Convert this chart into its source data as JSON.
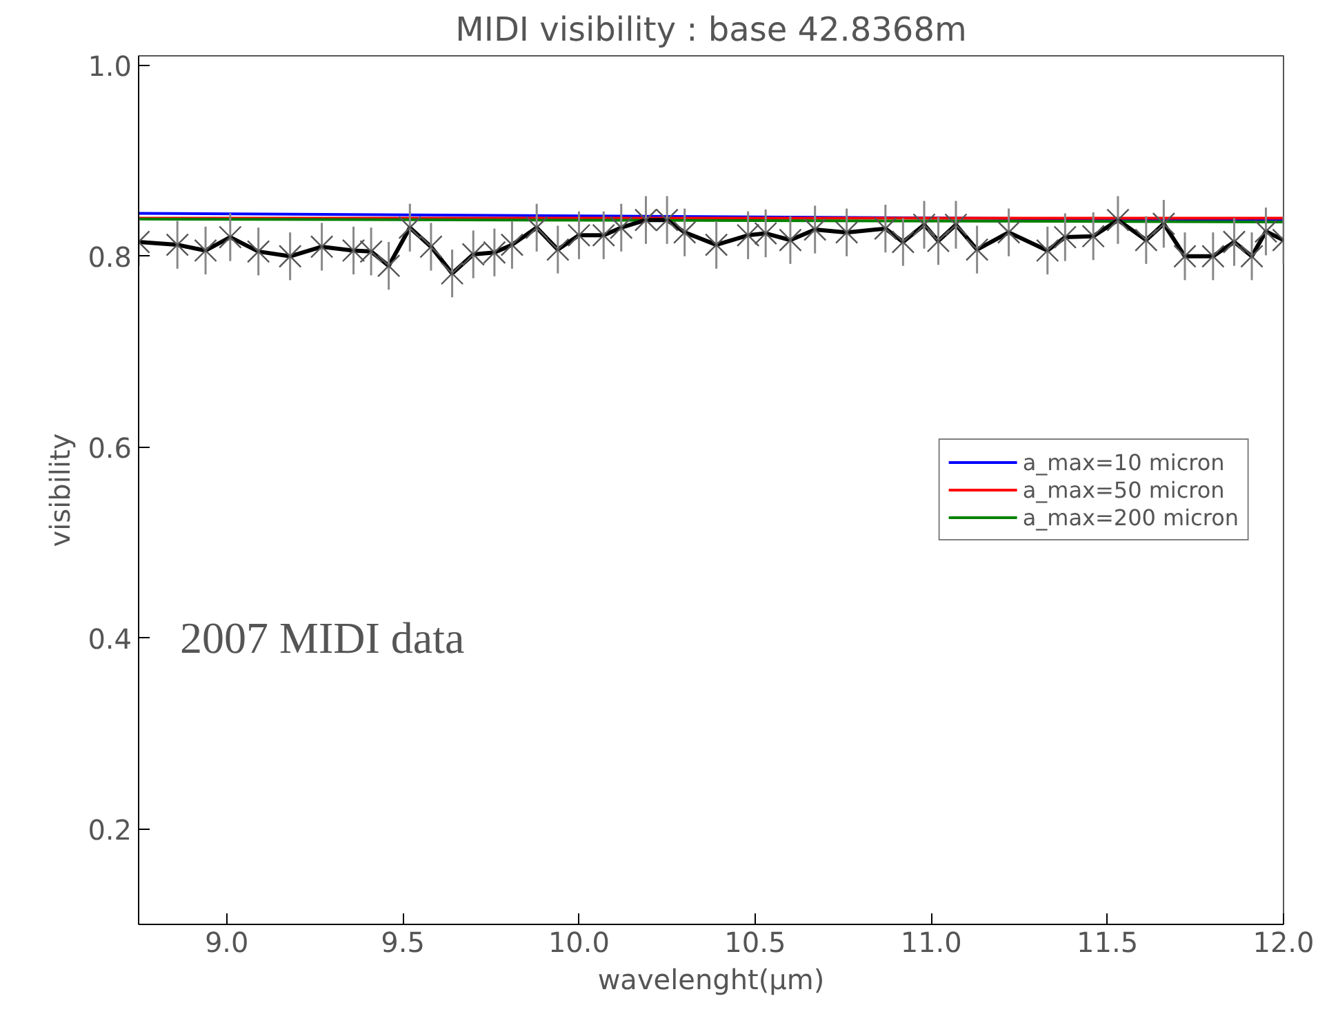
{
  "chart_data": {
    "type": "line",
    "title": "MIDI visibility : base 42.8368m",
    "xlabel": "wavelenght(μm)",
    "ylabel": "visibility",
    "xlim": [
      8.75,
      12.0
    ],
    "ylim": [
      0.1,
      1.01
    ],
    "xticks": [
      {
        "value": 9,
        "label": "9.0"
      },
      9.5,
      {
        "value": 10,
        "label": "10.0"
      },
      10.5,
      {
        "value": 11,
        "label": "11.0"
      },
      11.5,
      {
        "value": 12,
        "label": "12.0"
      }
    ],
    "yticks": [
      0.2,
      0.4,
      0.6,
      0.8,
      {
        "value": 1,
        "label": "1.0"
      }
    ],
    "grid": false,
    "legend": "right",
    "annotations": [
      "2007 MIDI data"
    ],
    "series": [
      {
        "name": "a_max=10 micron",
        "color": "#0000ff",
        "x": [
          8.75,
          12.0
        ],
        "values": [
          0.845,
          0.838
        ]
      },
      {
        "name": "a_max=50 micron",
        "color": "#ff0000",
        "x": [
          8.75,
          12.0
        ],
        "values": [
          0.84,
          0.84
        ]
      },
      {
        "name": "a_max=200 micron",
        "color": "#008000",
        "x": [
          8.75,
          12.0
        ],
        "values": [
          0.839,
          0.836
        ]
      },
      {
        "color": "#000000",
        "marker": "cross",
        "x": [
          8.75,
          8.86,
          8.94,
          9.01,
          9.09,
          9.18,
          9.27,
          9.36,
          9.41,
          9.46,
          9.52,
          9.58,
          9.64,
          9.7,
          9.76,
          9.81,
          9.88,
          9.94,
          10.0,
          10.07,
          10.12,
          10.19,
          10.25,
          10.3,
          10.39,
          10.48,
          10.53,
          10.6,
          10.67,
          10.76,
          10.87,
          10.92,
          10.98,
          11.02,
          11.07,
          11.13,
          11.22,
          11.33,
          11.38,
          11.46,
          11.53,
          11.61,
          11.66,
          11.72,
          11.8,
          11.86,
          11.91,
          11.95,
          12.0
        ],
        "values": [
          0.815,
          0.812,
          0.806,
          0.82,
          0.805,
          0.8,
          0.81,
          0.806,
          0.805,
          0.79,
          0.83,
          0.81,
          0.782,
          0.802,
          0.804,
          0.812,
          0.83,
          0.807,
          0.822,
          0.822,
          0.83,
          0.838,
          0.838,
          0.825,
          0.812,
          0.822,
          0.824,
          0.817,
          0.828,
          0.825,
          0.829,
          0.815,
          0.833,
          0.816,
          0.833,
          0.807,
          0.825,
          0.806,
          0.82,
          0.821,
          0.838,
          0.817,
          0.834,
          0.8,
          0.8,
          0.815,
          0.8,
          0.826,
          0.817
        ],
        "errors": [
          0.025,
          0.025,
          0.025,
          0.025,
          0.025,
          0.025,
          0.025,
          0.025,
          0.025,
          0.025,
          0.025,
          0.025,
          0.025,
          0.025,
          0.025,
          0.025,
          0.025,
          0.025,
          0.025,
          0.025,
          0.025,
          0.025,
          0.025,
          0.025,
          0.025,
          0.025,
          0.025,
          0.025,
          0.025,
          0.025,
          0.025,
          0.025,
          0.025,
          0.025,
          0.025,
          0.025,
          0.025,
          0.025,
          0.025,
          0.025,
          0.025,
          0.025,
          0.025,
          0.025,
          0.025,
          0.025,
          0.025,
          0.025,
          0.025
        ]
      }
    ]
  }
}
